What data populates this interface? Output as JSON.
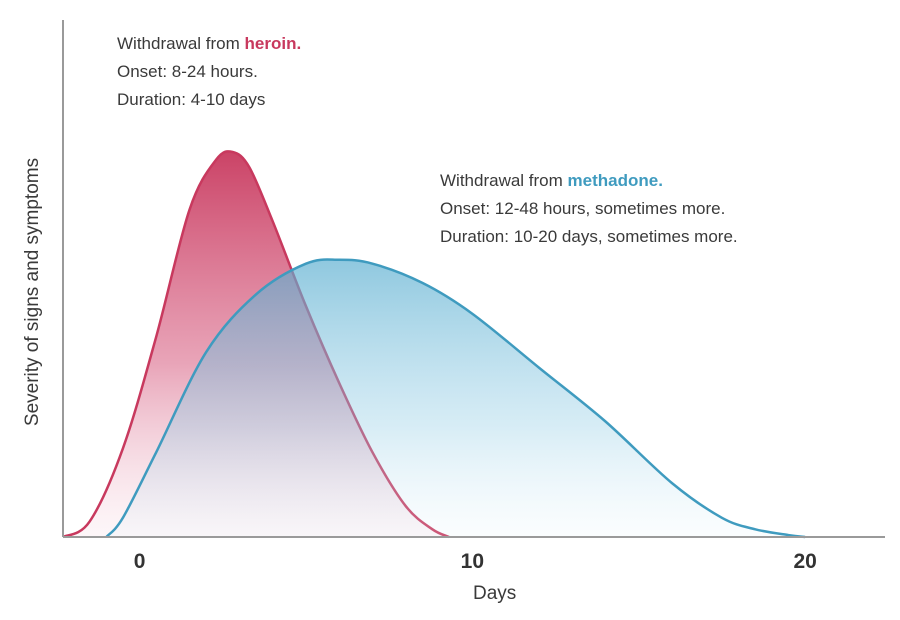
{
  "chart_data": {
    "type": "area",
    "xlabel": "Days",
    "ylabel": "Severity of signs and symptoms",
    "xlim": [
      -2.3,
      22.4
    ],
    "ylim": [
      0,
      1
    ],
    "x_ticks": [
      "0",
      "10",
      "20"
    ],
    "x_tick_values": [
      0,
      10,
      20
    ],
    "series": [
      {
        "name": "heroin",
        "color": "#c8395e",
        "x": [
          -2.3,
          -1.5,
          -0.5,
          0.5,
          1.5,
          2.3,
          2.8,
          3.3,
          4.0,
          5.0,
          6.0,
          7.0,
          8.0,
          8.8,
          9.3
        ],
        "y": [
          0.0,
          0.04,
          0.23,
          0.52,
          0.85,
          0.98,
          1.0,
          0.96,
          0.82,
          0.6,
          0.4,
          0.22,
          0.08,
          0.02,
          0.0
        ]
      },
      {
        "name": "methadone",
        "color": "#3f9bbf",
        "x": [
          -1.0,
          -0.5,
          0.5,
          2.0,
          3.5,
          5.0,
          6.0,
          7.0,
          8.5,
          10.0,
          12.0,
          14.0,
          16.0,
          17.5,
          18.5,
          19.5,
          20.0
        ],
        "y": [
          0.0,
          0.05,
          0.22,
          0.48,
          0.63,
          0.71,
          0.72,
          0.71,
          0.66,
          0.58,
          0.44,
          0.3,
          0.14,
          0.05,
          0.02,
          0.005,
          0.0
        ]
      }
    ],
    "annotations": [
      {
        "series": "heroin",
        "lines": [
          {
            "prefix": "Withdrawal from ",
            "highlight": "heroin."
          },
          {
            "text": "Onset: 8-24 hours."
          },
          {
            "text": "Duration: 4-10 days"
          }
        ]
      },
      {
        "series": "methadone",
        "lines": [
          {
            "prefix": "Withdrawal from ",
            "highlight": "methadone."
          },
          {
            "text": "Onset: 12-48 hours, sometimes more."
          },
          {
            "text": "Duration: 10-20 days, sometimes more."
          }
        ]
      }
    ],
    "grid": false,
    "legend": "none"
  }
}
